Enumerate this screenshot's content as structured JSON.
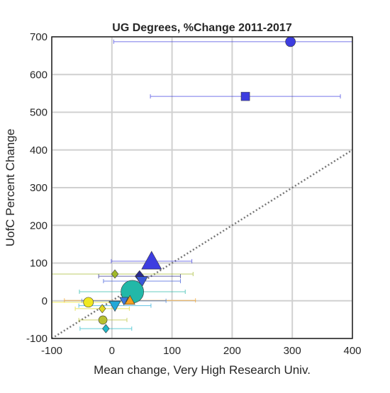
{
  "chart_data": {
    "type": "scatter",
    "title": "UG Degrees, %Change 2011-2017",
    "x_label": "Mean change, Very High Research Univ.",
    "y_label": "UofC Percent Change",
    "xlim": [
      -100,
      400
    ],
    "ylim": [
      -100,
      700
    ],
    "xticks": [
      -100,
      0,
      100,
      200,
      300,
      400
    ],
    "yticks": [
      -100,
      0,
      100,
      200,
      300,
      400,
      500,
      600,
      700
    ],
    "grid": true,
    "x": [
      297,
      222,
      66,
      5,
      46,
      50,
      34,
      5,
      30,
      20,
      -39,
      -16,
      -15,
      -10
    ],
    "y": [
      687,
      542,
      105,
      71,
      65,
      52,
      24,
      -13,
      1,
      0,
      -4,
      -21,
      -51,
      -74
    ],
    "xerr": [
      294,
      158,
      67,
      130,
      68,
      64,
      88,
      60,
      109,
      70,
      65,
      45,
      40,
      43
    ],
    "markers": [
      "circle",
      "square",
      "triangle-up",
      "diamond",
      "diamond",
      "triangle-down",
      "circle",
      "triangle-down",
      "triangle-up",
      "triangle-down",
      "circle",
      "diamond",
      "circle",
      "diamond"
    ],
    "colors": [
      "#3d3de0",
      "#3d3de0",
      "#3d3de0",
      "#a0b828",
      "#2a2a8c",
      "#3a58d8",
      "#22b8a8",
      "#22a8d8",
      "#f4a020",
      "#3a7ae0",
      "#f0e820",
      "#e0d820",
      "#b8c030",
      "#20b8c8"
    ],
    "sizes": [
      7,
      6,
      14,
      6,
      8,
      8,
      16,
      8,
      7,
      6,
      7,
      6,
      6,
      6
    ]
  }
}
